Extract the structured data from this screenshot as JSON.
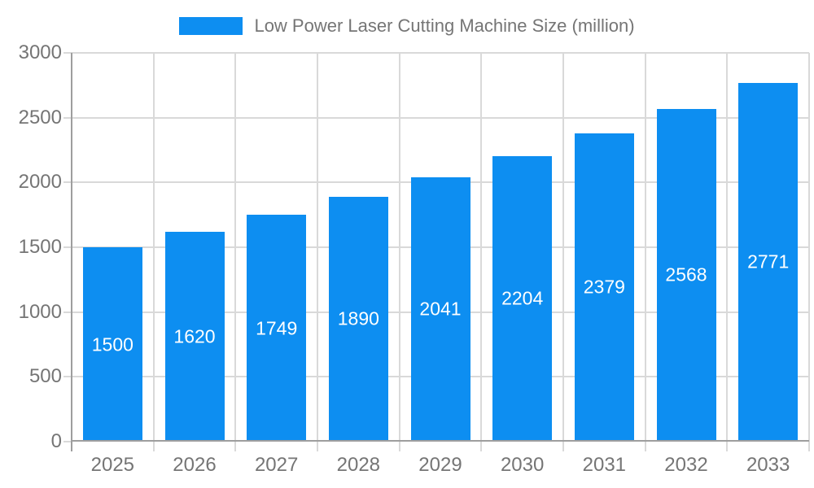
{
  "legend": {
    "swatch_color": "#0d8ef1",
    "label": "Low Power Laser Cutting Machine Size (million)"
  },
  "chart_data": {
    "type": "bar",
    "title": "Low Power Laser Cutting Machine Size (million)",
    "categories": [
      "2025",
      "2026",
      "2027",
      "2028",
      "2029",
      "2030",
      "2031",
      "2032",
      "2033"
    ],
    "series": [
      {
        "name": "Low Power Laser Cutting Machine Size (million)",
        "color": "#0d8ef1",
        "values": [
          1500,
          1620,
          1749,
          1890,
          2041,
          2204,
          2379,
          2568,
          2771
        ]
      }
    ],
    "xlabel": "",
    "ylabel": "",
    "ylim": [
      0,
      3000
    ],
    "yticks": [
      0,
      500,
      1000,
      1500,
      2000,
      2500,
      3000
    ],
    "grid": true,
    "legend_position": "top",
    "value_label_position": "inside-center",
    "colors": {
      "bar": "#0d8ef1",
      "value_label": "#ffffff",
      "axis_label": "#757575",
      "gridline": "#d9d9d9",
      "axis_line": "#9e9e9e",
      "background": "#ffffff"
    }
  }
}
